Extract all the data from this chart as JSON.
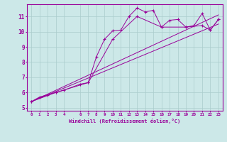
{
  "xlabel": "Windchill (Refroidissement éolien,°C)",
  "bg_color": "#cce8e8",
  "grid_color": "#aacccc",
  "line_color": "#990099",
  "xlim": [
    -0.5,
    23.5
  ],
  "ylim": [
    4.8,
    11.8
  ],
  "xticks": [
    0,
    1,
    2,
    3,
    4,
    6,
    7,
    8,
    9,
    10,
    11,
    12,
    13,
    14,
    15,
    16,
    17,
    18,
    19,
    20,
    21,
    22,
    23
  ],
  "yticks": [
    5,
    6,
    7,
    8,
    9,
    10,
    11
  ],
  "series": [
    {
      "x": [
        0,
        1,
        2,
        3,
        4,
        6,
        7,
        8,
        9,
        10,
        11,
        12,
        13,
        14,
        15,
        16,
        17,
        18,
        19,
        20,
        21,
        22,
        23
      ],
      "y": [
        5.4,
        5.7,
        5.85,
        6.0,
        6.15,
        6.55,
        6.65,
        8.35,
        9.5,
        10.05,
        10.1,
        11.0,
        11.55,
        11.3,
        11.4,
        10.3,
        10.75,
        10.8,
        10.3,
        10.4,
        11.2,
        10.1,
        10.8
      ],
      "marker": true
    },
    {
      "x": [
        0,
        3,
        7,
        10,
        13,
        16,
        19,
        21,
        22,
        23
      ],
      "y": [
        5.4,
        6.0,
        6.65,
        9.5,
        11.0,
        10.3,
        10.3,
        10.4,
        10.1,
        10.8
      ],
      "marker": true
    },
    {
      "x": [
        0,
        23
      ],
      "y": [
        5.4,
        10.5
      ],
      "marker": false
    },
    {
      "x": [
        0,
        23
      ],
      "y": [
        5.4,
        11.1
      ],
      "marker": false
    }
  ]
}
